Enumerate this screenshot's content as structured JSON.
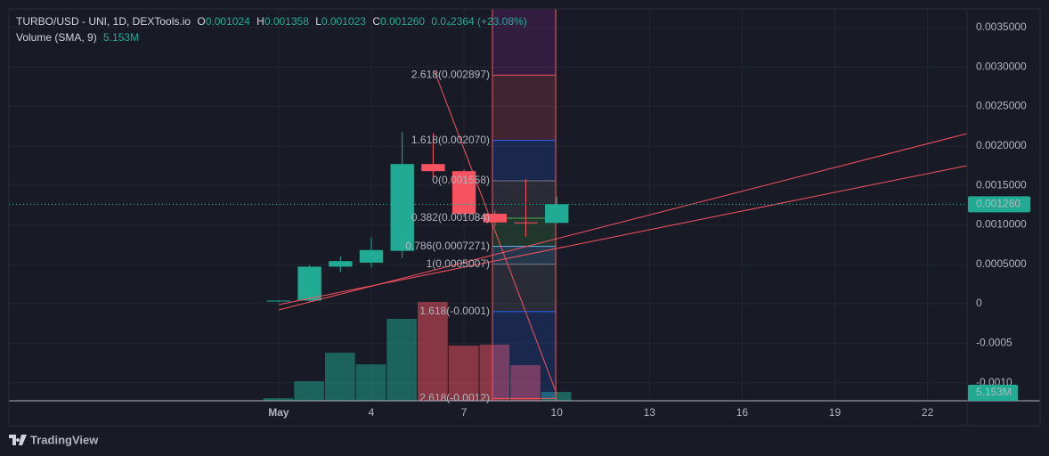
{
  "chart_data": {
    "type": "candlestick",
    "header": {
      "symbol": "TURBO/USD - UNI, 1D, DEXTools.io",
      "o_label": "O",
      "open": "0.001024",
      "h_label": "H",
      "high": "0.001358",
      "l_label": "L",
      "low": "0.001023",
      "c_label": "C",
      "close": "0.001260",
      "change": "0.0₄2364 (+23.08%)"
    },
    "volume_title": "Volume (SMA, 9)",
    "volume_label": "5.153M",
    "x": [
      1,
      2,
      3,
      4,
      5,
      6,
      7,
      8,
      9,
      10
    ],
    "open": [
      3e-05,
      4e-05,
      0.00047,
      0.00052,
      0.00067,
      0.00177,
      0.00168,
      0.00114,
      0.00103,
      0.001024
    ],
    "high": [
      4e-05,
      0.00049,
      0.0006,
      0.00084,
      0.00218,
      0.00216,
      0.0017,
      0.00118,
      0.00158,
      0.001358
    ],
    "low": [
      2e-05,
      3e-05,
      0.0004,
      0.00046,
      0.00058,
      0.0016,
      0.0011,
      0.00098,
      0.00085,
      0.001023
    ],
    "close": [
      4e-05,
      0.00047,
      0.00054,
      0.00068,
      0.00177,
      0.00168,
      0.00114,
      0.00103,
      0.001024,
      0.00126
    ],
    "volume": [
      1500000,
      11300000,
      27800000,
      21100000,
      47400000,
      57200000,
      31900000,
      32500000,
      20600000,
      5153000
    ],
    "volume_ylim": [
      0,
      226700000
    ],
    "up_color": "#22ab94",
    "down_color": "#f7525f",
    "xlim": [
      -7.73,
      23.28
    ],
    "xticks": [
      {
        "value": 1,
        "label": "May"
      },
      4,
      7,
      10,
      13,
      16,
      19,
      22
    ],
    "ylim": [
      -0.00123,
      0.003736
    ],
    "yticks": [
      {
        "value": 0.0035,
        "label": "0.0035000"
      },
      {
        "value": 0.003,
        "label": "0.0030000"
      },
      {
        "value": 0.0025,
        "label": "0.0025000"
      },
      {
        "value": 0.002,
        "label": "0.0020000"
      },
      {
        "value": 0.0015,
        "label": "0.0015000"
      },
      {
        "value": 0.001,
        "label": "0.0010000"
      },
      {
        "value": 0.0005,
        "label": "0.0005000"
      },
      0,
      {
        "value": -0.0005,
        "label": "-0.0005"
      },
      {
        "value": -0.001,
        "label": "-0.0010"
      }
    ],
    "grid": true,
    "fib_levels": [
      {
        "label": "2.618(0.002897)",
        "value": 0.002897,
        "color": "#f7525f"
      },
      {
        "label": "1.618(0.002070)",
        "value": 0.00207,
        "color": "#2962ff"
      },
      {
        "label": "0(0.001558)",
        "value": 0.001558,
        "color": "#787b86"
      },
      {
        "label": "0.382(0.001084)",
        "value": 0.001084,
        "color": "#4caf50"
      },
      {
        "label": "0.786(0.0007271)",
        "value": 0.0007271,
        "color": "#64b5f6"
      },
      {
        "label": "1(0.0005007)",
        "value": 0.0005007,
        "color": "#787b86"
      },
      {
        "label": "1.618(-0.0001)",
        "value": -0.0001,
        "color": "#2962ff"
      },
      {
        "label": "2.618(-0.0012)",
        "value": -0.0012,
        "color": "#f7525f"
      }
    ],
    "footer": "TradingView"
  }
}
